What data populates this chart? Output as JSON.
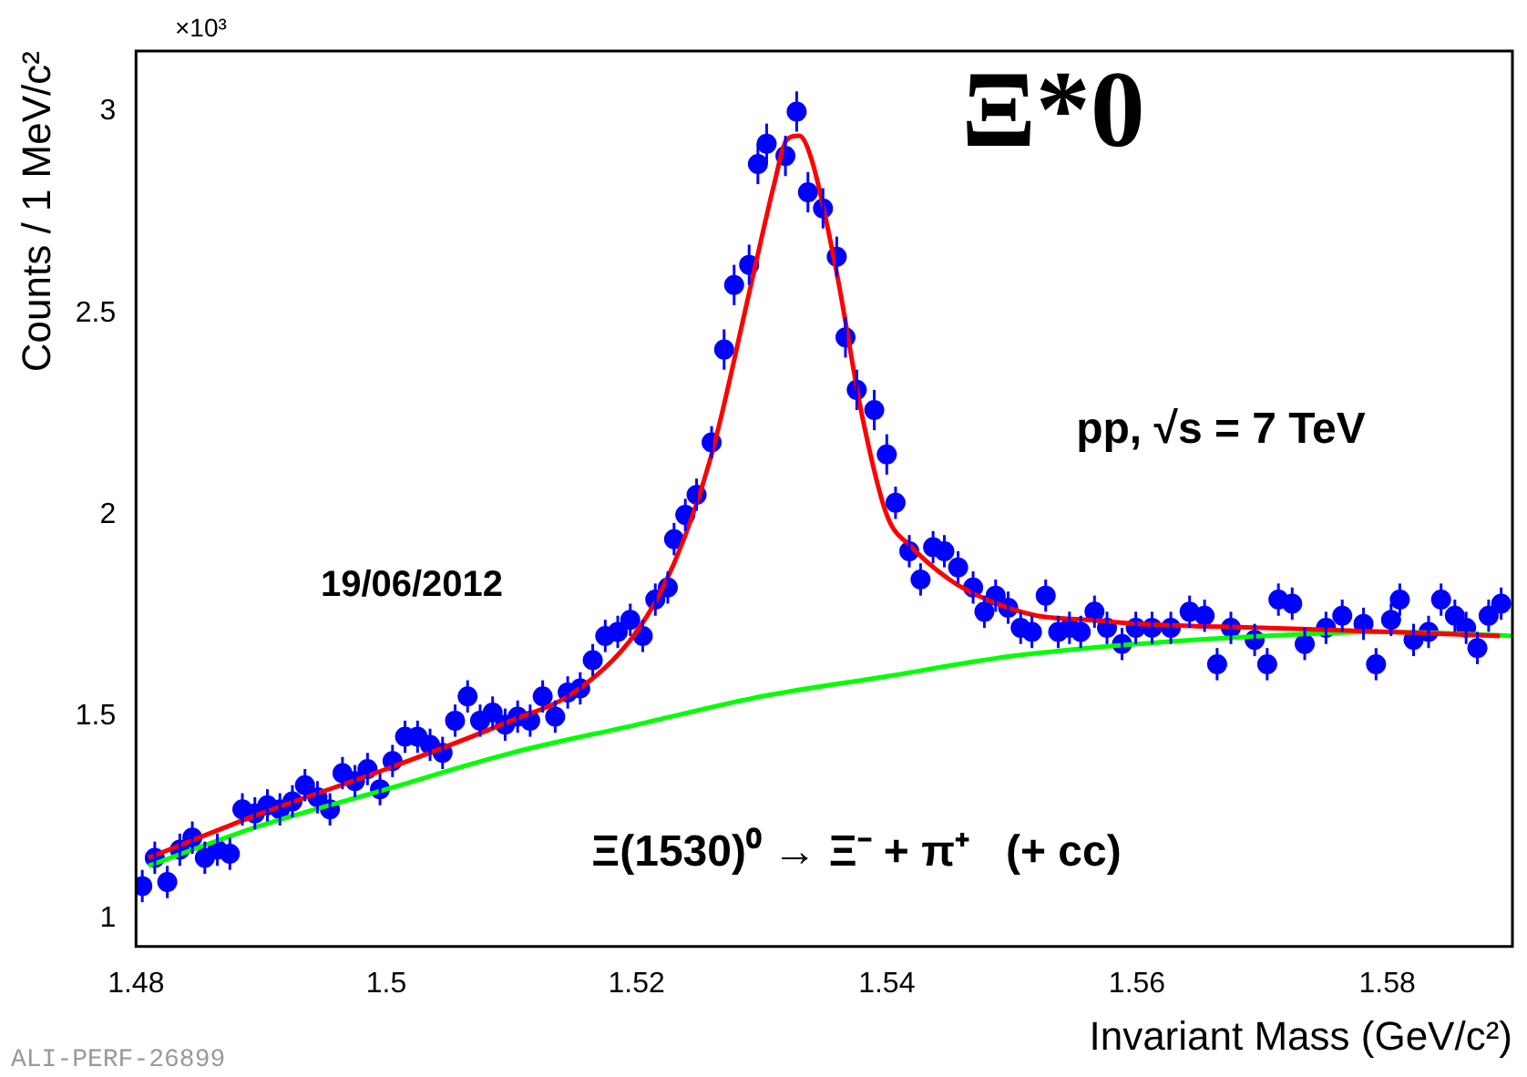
{
  "chart_data": {
    "type": "scatter",
    "xlabel": "Invariant Mass (GeV/c²)",
    "ylabel": "Counts / 1 MeV/c²",
    "annotations": [
      "×10³",
      "Ξ*0",
      "pp, √s = 7 TeV",
      "19/06/2012",
      "Ξ(1530)⁰ → Ξ⁻ + π⁺   (+ cc)",
      "ALI-PERF-26899"
    ],
    "xlim": [
      1.48,
      1.59
    ],
    "xticks": [
      1.48,
      1.5,
      1.52,
      1.54,
      1.56,
      1.58
    ],
    "ylim": [
      0.93,
      3.15
    ],
    "yticks": [
      1,
      1.5,
      2,
      2.5,
      3
    ],
    "grid": false,
    "legend": false,
    "marker": "circle",
    "series": [
      {
        "color": "#0000ff",
        "x": [
          1.4805,
          1.4815,
          1.4825,
          1.4835,
          1.4845,
          1.4855,
          1.4865,
          1.4875,
          1.4885,
          1.4895,
          1.4905,
          1.4915,
          1.4925,
          1.4935,
          1.4945,
          1.4955,
          1.4965,
          1.4975,
          1.4985,
          1.4995,
          1.5005,
          1.5015,
          1.5025,
          1.5035,
          1.5045,
          1.5055,
          1.5065,
          1.5075,
          1.5085,
          1.5095,
          1.5105,
          1.5115,
          1.5125,
          1.5135,
          1.5145,
          1.5155,
          1.5165,
          1.5175,
          1.5185,
          1.5195,
          1.5205,
          1.5215,
          1.5225,
          1.523,
          1.5239,
          1.5248,
          1.526,
          1.527,
          1.5278,
          1.529,
          1.5297,
          1.5304,
          1.5319,
          1.5328,
          1.5337,
          1.5349,
          1.536,
          1.5367,
          1.5376,
          1.539,
          1.54,
          1.5407,
          1.5418,
          1.5427,
          1.5437,
          1.5446,
          1.5457,
          1.5469,
          1.5478,
          1.5487,
          1.5497,
          1.5507,
          1.5516,
          1.5527,
          1.5537,
          1.5546,
          1.5555,
          1.5566,
          1.5576,
          1.5588,
          1.5599,
          1.5612,
          1.5627,
          1.5642,
          1.5654,
          1.5664,
          1.5675,
          1.5694,
          1.5704,
          1.5713,
          1.5724,
          1.5734,
          1.5751,
          1.5764,
          1.5781,
          1.5791,
          1.5803,
          1.581,
          1.5821,
          1.5833,
          1.5843,
          1.5854,
          1.5863,
          1.5872,
          1.5881,
          1.5891
        ],
        "values": [
          1.08,
          1.15,
          1.09,
          1.17,
          1.2,
          1.15,
          1.17,
          1.16,
          1.27,
          1.26,
          1.28,
          1.27,
          1.29,
          1.33,
          1.3,
          1.27,
          1.36,
          1.34,
          1.37,
          1.32,
          1.39,
          1.45,
          1.45,
          1.43,
          1.41,
          1.49,
          1.55,
          1.49,
          1.51,
          1.48,
          1.5,
          1.49,
          1.55,
          1.5,
          1.56,
          1.57,
          1.64,
          1.7,
          1.71,
          1.74,
          1.7,
          1.79,
          1.82,
          1.94,
          2.0,
          2.05,
          2.18,
          2.41,
          2.57,
          2.62,
          2.87,
          2.92,
          2.89,
          3.0,
          2.8,
          2.76,
          2.64,
          2.44,
          2.31,
          2.26,
          2.15,
          2.03,
          1.91,
          1.84,
          1.92,
          1.91,
          1.87,
          1.82,
          1.76,
          1.8,
          1.77,
          1.72,
          1.71,
          1.8,
          1.71,
          1.72,
          1.71,
          1.76,
          1.72,
          1.68,
          1.72,
          1.72,
          1.72,
          1.76,
          1.75,
          1.63,
          1.72,
          1.69,
          1.63,
          1.79,
          1.78,
          1.68,
          1.72,
          1.75,
          1.73,
          1.63,
          1.74,
          1.79,
          1.69,
          1.71,
          1.79,
          1.75,
          1.72,
          1.67,
          1.75,
          1.78
        ],
        "errors": [
          0.04,
          0.04,
          0.04,
          0.04,
          0.04,
          0.04,
          0.04,
          0.04,
          0.04,
          0.04,
          0.04,
          0.04,
          0.04,
          0.04,
          0.04,
          0.04,
          0.04,
          0.04,
          0.04,
          0.04,
          0.04,
          0.04,
          0.04,
          0.04,
          0.04,
          0.04,
          0.04,
          0.04,
          0.04,
          0.04,
          0.04,
          0.04,
          0.04,
          0.04,
          0.04,
          0.04,
          0.04,
          0.04,
          0.04,
          0.04,
          0.04,
          0.04,
          0.04,
          0.04,
          0.04,
          0.04,
          0.04,
          0.05,
          0.05,
          0.05,
          0.05,
          0.05,
          0.05,
          0.05,
          0.05,
          0.05,
          0.05,
          0.05,
          0.05,
          0.05,
          0.05,
          0.04,
          0.04,
          0.04,
          0.04,
          0.04,
          0.04,
          0.04,
          0.04,
          0.04,
          0.04,
          0.04,
          0.04,
          0.04,
          0.04,
          0.04,
          0.04,
          0.04,
          0.04,
          0.04,
          0.04,
          0.04,
          0.04,
          0.04,
          0.04,
          0.04,
          0.04,
          0.04,
          0.04,
          0.04,
          0.04,
          0.04,
          0.04,
          0.04,
          0.04,
          0.04,
          0.04,
          0.04,
          0.04,
          0.04,
          0.04,
          0.04,
          0.04,
          0.04,
          0.04,
          0.04
        ]
      },
      {
        "type": "line",
        "color": "#ff0000",
        "marker": "none",
        "x": [
          1.481,
          1.49,
          1.5,
          1.51,
          1.515,
          1.52,
          1.523,
          1.526,
          1.529,
          1.531,
          1.532,
          1.533,
          1.534,
          1.536,
          1.538,
          1.54,
          1.542,
          1.545,
          1.548,
          1.552,
          1.556,
          1.56,
          1.57,
          1.58,
          1.589
        ],
        "values": [
          1.15,
          1.26,
          1.37,
          1.49,
          1.56,
          1.71,
          1.88,
          2.15,
          2.55,
          2.82,
          2.93,
          2.94,
          2.88,
          2.6,
          2.25,
          2.0,
          1.92,
          1.84,
          1.79,
          1.75,
          1.74,
          1.73,
          1.72,
          1.71,
          1.7
        ]
      },
      {
        "type": "line",
        "color": "#00ff00",
        "marker": "none",
        "x": [
          1.481,
          1.49,
          1.5,
          1.51,
          1.52,
          1.53,
          1.54,
          1.55,
          1.56,
          1.57,
          1.58,
          1.59
        ],
        "values": [
          1.13,
          1.23,
          1.32,
          1.41,
          1.48,
          1.55,
          1.6,
          1.65,
          1.68,
          1.7,
          1.71,
          1.7
        ]
      }
    ]
  }
}
